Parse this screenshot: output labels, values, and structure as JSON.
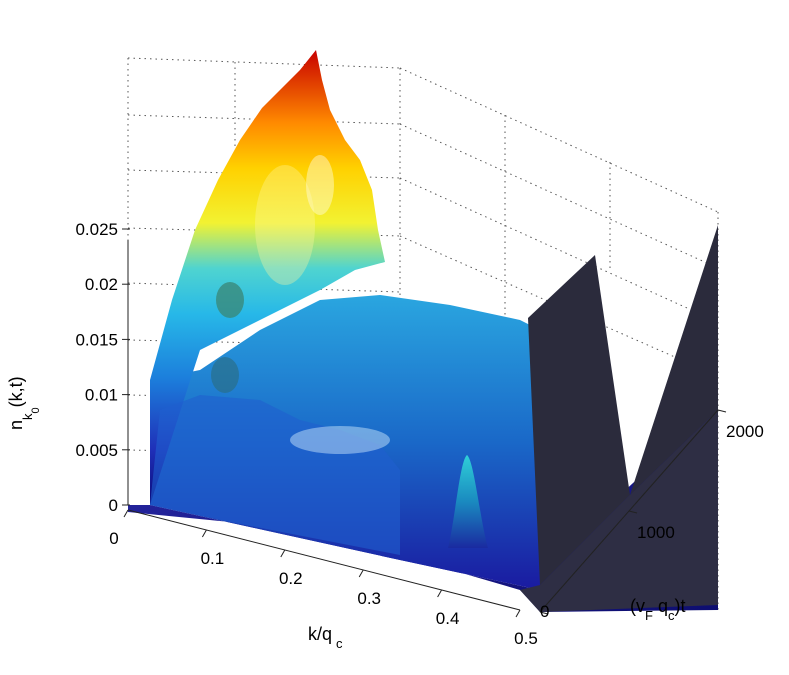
{
  "chart_data": {
    "type": "surface3d",
    "title": "",
    "xlabel": {
      "main": "k/q",
      "sub": "c"
    },
    "ylabel": {
      "main": "(v",
      "sub1": "F",
      "mid": " q",
      "sub2": "c",
      "tail": ")t"
    },
    "zlabel": {
      "main": "n",
      "sub": "k",
      "subsub": "0",
      "tail": "(k,t)"
    },
    "xlim": [
      0,
      0.5
    ],
    "ylim": [
      0,
      2000
    ],
    "zlim": [
      0,
      0.03
    ],
    "x_ticks": [
      "0",
      "0.1",
      "0.2",
      "0.3",
      "0.4",
      "0.5"
    ],
    "y_ticks": [
      "0",
      "1000",
      "2000"
    ],
    "z_ticks": [
      "0",
      "0.005",
      "0.01",
      "0.015",
      "0.02",
      "0.025"
    ],
    "colormap": "jet",
    "shading": "interp with lighting",
    "grid": true,
    "features": {
      "main_peak": {
        "k": 0.05,
        "t": 2000,
        "n": 0.031
      },
      "secondary_peak": {
        "k": 0.42,
        "t": 250,
        "n": 0.006
      },
      "plateau": {
        "k_range": [
          0.05,
          0.4
        ],
        "n": 0.01
      }
    },
    "colors": {
      "low": "#00008f",
      "mid": "#00bfff",
      "high": "#ffff00",
      "peak": "#cc0000",
      "shadow_wall": "#2b2b3c"
    }
  }
}
